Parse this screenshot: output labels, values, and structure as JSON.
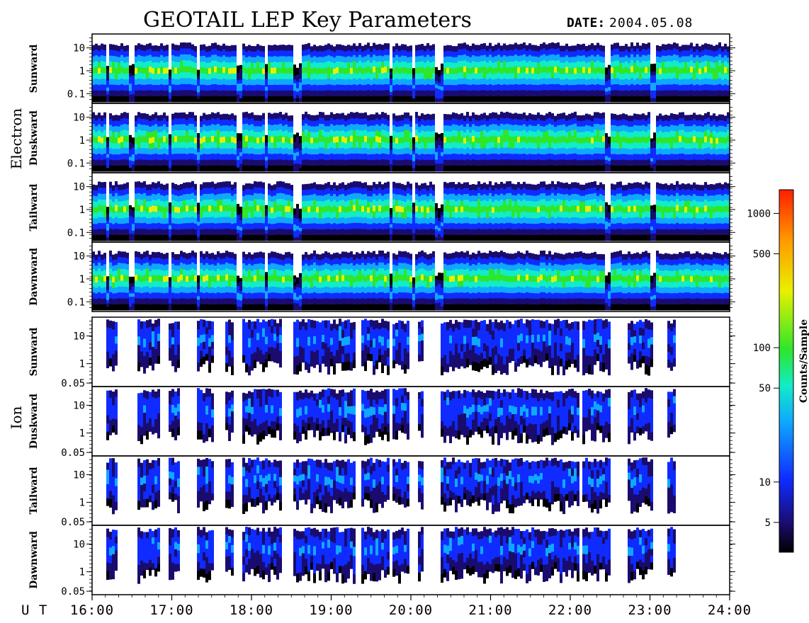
{
  "title": "GEOTAIL LEP Key Parameters",
  "date_label": "DATE:",
  "date_value": "2004.05.08",
  "x_axis_prefix": "U T",
  "chart_data": {
    "type": "heatmap",
    "title": "GEOTAIL LEP Key Parameters",
    "date": "2004.05.08",
    "x_ticks": [
      "16:00",
      "17:00",
      "18:00",
      "19:00",
      "20:00",
      "21:00",
      "22:00",
      "23:00",
      "24:00"
    ],
    "x_range_hours": [
      16,
      24
    ],
    "groups": [
      {
        "name": "Electron",
        "panels": [
          {
            "name": "Sunward",
            "y_ticks": [
              "10",
              "1",
              "0.1"
            ],
            "y_scale": "log"
          },
          {
            "name": "Duskward",
            "y_ticks": [
              "10",
              "1",
              "0.1"
            ],
            "y_scale": "log"
          },
          {
            "name": "Tailward",
            "y_ticks": [
              "10",
              "1",
              "0.1"
            ],
            "y_scale": "log"
          },
          {
            "name": "Dawnward",
            "y_ticks": [
              "10",
              "1",
              "0.1"
            ],
            "y_scale": "log"
          }
        ]
      },
      {
        "name": "Ion",
        "panels": [
          {
            "name": "Sunward",
            "y_ticks": [
              "10",
              "1",
              "0.05"
            ],
            "y_scale": "log"
          },
          {
            "name": "Duskward",
            "y_ticks": [
              "10",
              "1",
              "0.05"
            ],
            "y_scale": "log"
          },
          {
            "name": "Tailward",
            "y_ticks": [
              "10",
              "1",
              "0.05"
            ],
            "y_scale": "log"
          },
          {
            "name": "Dawnward",
            "y_ticks": [
              "10",
              "1",
              "0.05"
            ],
            "y_scale": "log"
          }
        ]
      }
    ],
    "colorbar": {
      "label": "Counts/Sample",
      "scale": "log",
      "range": [
        3,
        1500
      ],
      "ticks": [
        "1000",
        "500",
        "100",
        "50",
        "10",
        "5"
      ],
      "tick_values": [
        1000,
        500,
        100,
        50,
        10,
        5
      ],
      "colors": [
        "#000000",
        "#1a0c6e",
        "#0f2bff",
        "#0fa8ff",
        "#12ecc7",
        "#2ee62a",
        "#e8f000",
        "#ff9a00",
        "#ff1e00"
      ]
    },
    "electron_intervals_hours": [
      [
        16.0,
        16.15
      ],
      [
        16.18,
        16.45
      ],
      [
        16.52,
        16.95
      ],
      [
        16.98,
        17.08
      ],
      [
        17.1,
        17.28
      ],
      [
        17.32,
        17.78
      ],
      [
        17.85,
        18.15
      ],
      [
        18.18,
        18.52
      ],
      [
        18.6,
        19.72
      ],
      [
        19.75,
        20.0
      ],
      [
        20.05,
        20.3
      ],
      [
        20.4,
        22.12
      ],
      [
        22.15,
        22.4
      ],
      [
        22.48,
        23.0
      ],
      [
        23.05,
        24.0
      ]
    ],
    "ion_intervals_hours": [
      [
        16.15,
        16.3
      ],
      [
        16.55,
        16.85
      ],
      [
        16.95,
        17.1
      ],
      [
        17.3,
        17.5
      ],
      [
        17.65,
        17.75
      ],
      [
        17.85,
        18.1
      ],
      [
        18.12,
        18.35
      ],
      [
        18.5,
        19.3
      ],
      [
        19.35,
        19.7
      ],
      [
        19.75,
        19.95
      ],
      [
        20.08,
        20.15
      ],
      [
        20.35,
        22.1
      ],
      [
        22.12,
        22.5
      ],
      [
        22.7,
        23.02
      ],
      [
        23.2,
        23.3
      ]
    ]
  }
}
